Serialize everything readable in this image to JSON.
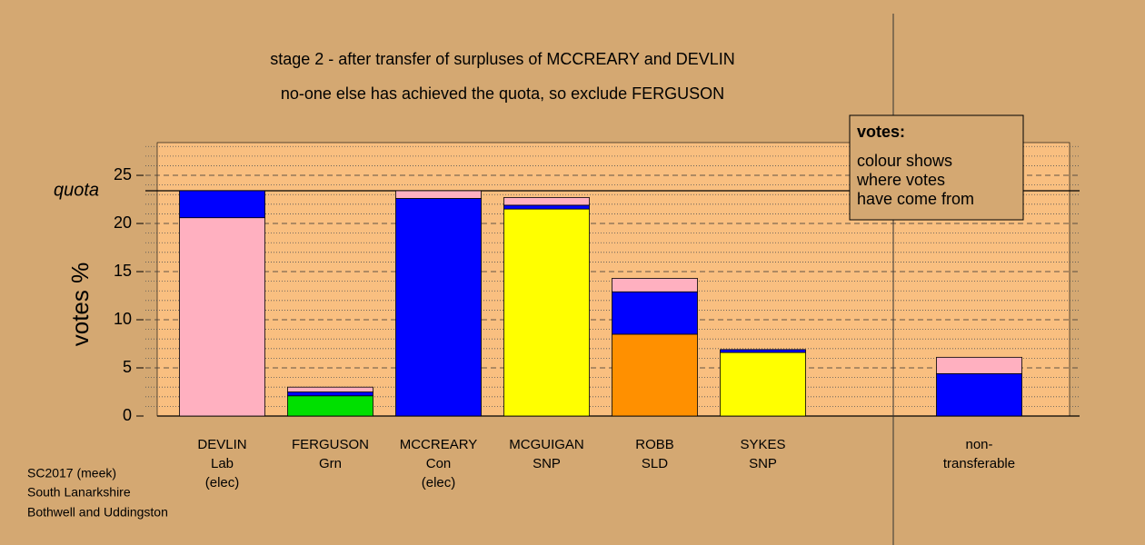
{
  "chart_data": {
    "type": "stacked-bar",
    "title": "stage 2 - after transfer of surpluses of MCCREARY and DEVLIN",
    "subtitle": "no-one else has achieved the quota, so exclude FERGUSON",
    "y_label": "votes %",
    "ylim": [
      0,
      28.4
    ],
    "yticks": [
      0,
      5,
      10,
      15,
      20,
      25
    ],
    "minor_yticks": [
      1,
      2,
      3,
      4,
      6,
      7,
      8,
      9,
      11,
      12,
      13,
      14,
      16,
      17,
      18,
      19,
      21,
      22,
      23,
      24,
      26,
      27,
      28
    ],
    "quota": {
      "value": 23.4,
      "label": "quota"
    },
    "categories": [
      [
        "DEVLIN",
        "Lab",
        "(elec)"
      ],
      [
        "FERGUSON",
        "Grn"
      ],
      [
        "MCCREARY",
        "Con",
        "(elec)"
      ],
      [
        "MCGUIGAN",
        "SNP"
      ],
      [
        "ROBB",
        "SLD"
      ],
      [
        "SYKES",
        "SNP"
      ],
      null,
      [
        "non-",
        "transferable"
      ]
    ],
    "series": [
      {
        "colors": [
          "#ffb0c0",
          "#00e000",
          "#0000ff",
          "#ffff00",
          "#ff9000",
          "#ffff00",
          null,
          null
        ],
        "values": [
          20.6,
          2.1,
          22.6,
          21.5,
          8.5,
          6.6,
          null,
          0
        ]
      },
      {
        "color": "#0000ff",
        "values": [
          2.8,
          0.4,
          0,
          0.4,
          4.4,
          0.3,
          null,
          4.4
        ]
      },
      {
        "color": "#ffb0c0",
        "values": [
          0,
          0.5,
          0.8,
          0.8,
          1.4,
          0,
          null,
          1.7
        ]
      }
    ],
    "annotation": {
      "title": "votes:",
      "lines": [
        "colour shows",
        "where votes",
        "have come from"
      ]
    },
    "footer": [
      "SC2017 (meek)",
      "South Lanarkshire",
      "Bothwell and Uddingston"
    ]
  }
}
